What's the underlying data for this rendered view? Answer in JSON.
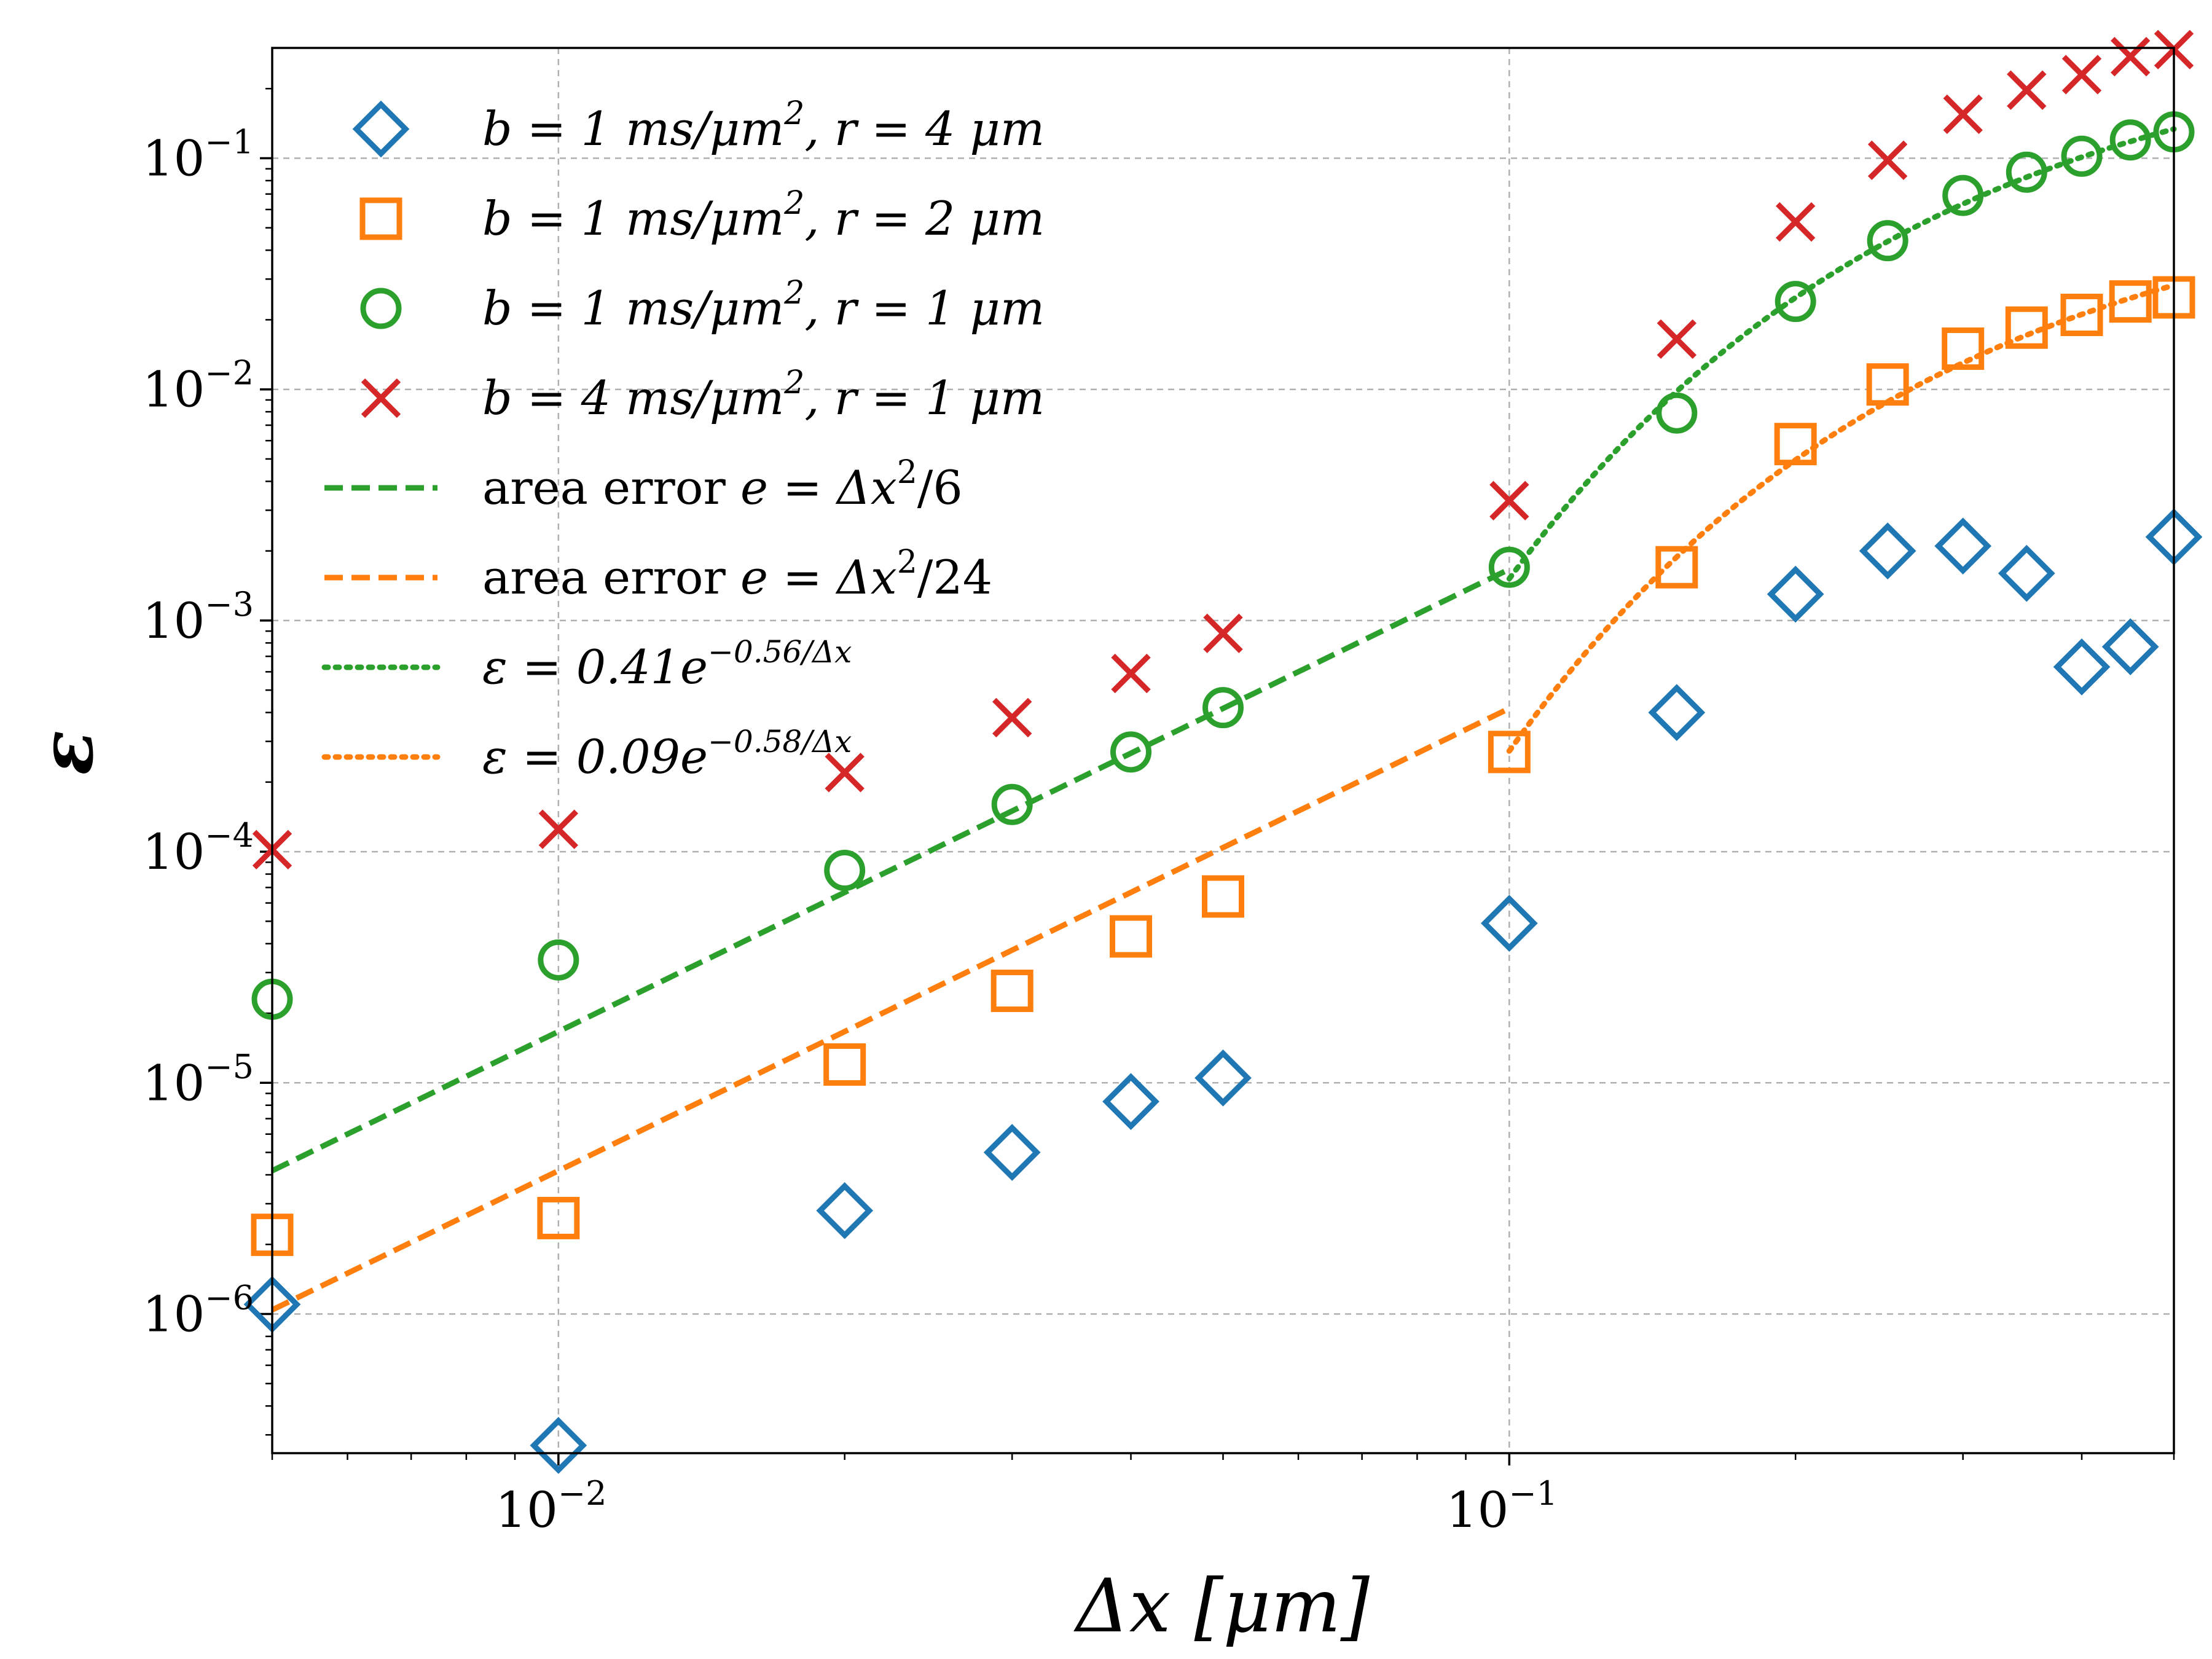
{
  "chart_data": {
    "type": "scatter",
    "title": "",
    "xlabel": "Δx [μm]",
    "ylabel": "ε",
    "x_scale": "log",
    "y_scale": "log",
    "xlim": [
      0.005,
      0.5
    ],
    "ylim": [
      2.5e-07,
      0.3
    ],
    "grid": true,
    "legend_position": "top-left",
    "x_ticks": [
      {
        "value": 0.01,
        "base": "10",
        "exp": "−2"
      },
      {
        "value": 0.1,
        "base": "10",
        "exp": "−1"
      }
    ],
    "y_ticks": [
      {
        "value": 1e-06,
        "base": "10",
        "exp": "−6"
      },
      {
        "value": 1e-05,
        "base": "10",
        "exp": "−5"
      },
      {
        "value": 0.0001,
        "base": "10",
        "exp": "−4"
      },
      {
        "value": 0.001,
        "base": "10",
        "exp": "−3"
      },
      {
        "value": 0.01,
        "base": "10",
        "exp": "−2"
      },
      {
        "value": 0.1,
        "base": "10",
        "exp": "−1"
      }
    ],
    "series": [
      {
        "name": "b = 1 ms/μm², r = 4 μm",
        "marker": "diamond",
        "color": "#1f77b4",
        "x": [
          0.005,
          0.01,
          0.02,
          0.03,
          0.04,
          0.05,
          0.1,
          0.15,
          0.2,
          0.25,
          0.3,
          0.35,
          0.4,
          0.45,
          0.5
        ],
        "y": [
          1.1e-06,
          2.7e-07,
          2.8e-06,
          5e-06,
          8.3e-06,
          1.05e-05,
          4.9e-05,
          0.0004,
          0.0013,
          0.002,
          0.0021,
          0.0016,
          0.00063,
          0.00077,
          0.0023
        ]
      },
      {
        "name": "b = 1 ms/μm², r = 2 μm",
        "marker": "square",
        "color": "#ff7f0e",
        "x": [
          0.005,
          0.01,
          0.02,
          0.03,
          0.04,
          0.05,
          0.1,
          0.15,
          0.2,
          0.25,
          0.3,
          0.35,
          0.4,
          0.45,
          0.5
        ],
        "y": [
          2.2e-06,
          2.6e-06,
          1.2e-05,
          2.5e-05,
          4.3e-05,
          6.4e-05,
          0.00027,
          0.0017,
          0.0058,
          0.0105,
          0.015,
          0.0185,
          0.021,
          0.024,
          0.025
        ]
      },
      {
        "name": "b = 1 ms/μm², r = 1 μm",
        "marker": "circle",
        "color": "#2ca02c",
        "x": [
          0.005,
          0.01,
          0.02,
          0.03,
          0.04,
          0.05,
          0.1,
          0.15,
          0.2,
          0.25,
          0.3,
          0.35,
          0.4,
          0.45,
          0.5
        ],
        "y": [
          2.3e-05,
          3.4e-05,
          8.3e-05,
          0.00016,
          0.00027,
          0.00042,
          0.0017,
          0.0079,
          0.024,
          0.044,
          0.069,
          0.087,
          0.102,
          0.12,
          0.13
        ]
      },
      {
        "name": "b = 4 ms/μm², r = 1 μm",
        "marker": "x",
        "color": "#d62728",
        "x": [
          0.005,
          0.01,
          0.02,
          0.03,
          0.04,
          0.05,
          0.1,
          0.15,
          0.2,
          0.25,
          0.3,
          0.35,
          0.4,
          0.45,
          0.5
        ],
        "y": [
          0.000102,
          0.000125,
          0.00022,
          0.00038,
          0.00059,
          0.00088,
          0.0033,
          0.0165,
          0.053,
          0.098,
          0.155,
          0.197,
          0.23,
          0.275,
          0.295
        ]
      },
      {
        "name": "area error e = Δx²/6",
        "style": "dashed",
        "color": "#2ca02c",
        "formula": "x^2/6",
        "x_range": [
          0.005,
          0.1
        ]
      },
      {
        "name": "area error e = Δx²/24",
        "style": "dashed",
        "color": "#ff7f0e",
        "formula": "x^2/24",
        "x_range": [
          0.005,
          0.1
        ]
      },
      {
        "name": "ε = 0.41e^(−0.56/Δx)",
        "style": "dotted",
        "color": "#2ca02c",
        "formula": "0.41*exp(-0.56/x)",
        "x_range": [
          0.1,
          0.5
        ]
      },
      {
        "name": "ε = 0.09e^(−0.58/Δx)",
        "style": "dotted",
        "color": "#ff7f0e",
        "formula": "0.09*exp(-0.58/x)",
        "x_range": [
          0.1,
          0.5
        ]
      }
    ]
  },
  "legend": [
    {
      "marker": "diamond",
      "color": "#1f77b4",
      "b_val": "1",
      "r_val": "4"
    },
    {
      "marker": "square",
      "color": "#ff7f0e",
      "b_val": "1",
      "r_val": "2"
    },
    {
      "marker": "circle",
      "color": "#2ca02c",
      "b_val": "1",
      "r_val": "1"
    },
    {
      "marker": "x",
      "color": "#d62728",
      "b_val": "4",
      "r_val": "1"
    },
    {
      "line": "dashed",
      "color": "#2ca02c",
      "prefix": "area error ",
      "expr": "e = Δx",
      "sup": "2",
      "tail": "/6"
    },
    {
      "line": "dashed",
      "color": "#ff7f0e",
      "prefix": "area error ",
      "expr": "e = Δx",
      "sup": "2",
      "tail": "/24"
    },
    {
      "line": "dotted",
      "color": "#2ca02c",
      "lead": "ε = 0.41e",
      "sup": "−0.56/Δx"
    },
    {
      "line": "dotted",
      "color": "#ff7f0e",
      "lead": "ε = 0.09e",
      "sup": "−0.58/Δx"
    }
  ]
}
